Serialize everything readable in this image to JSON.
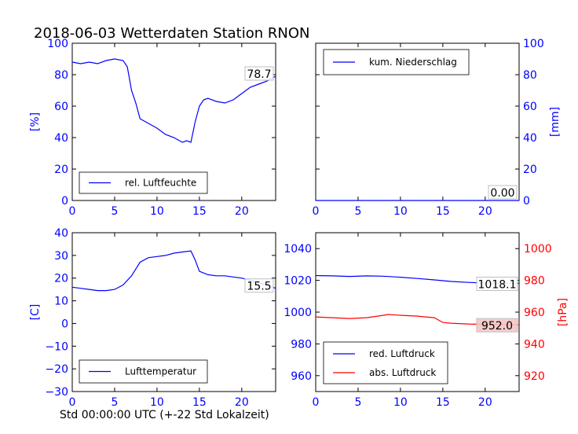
{
  "figure": {
    "title": "2018-06-03 Wetterdaten Station RNON",
    "xlabel": "Std 00:00:00 UTC (+-22 Std Lokalzeit)"
  },
  "chart_data": [
    {
      "id": "humidity",
      "type": "line",
      "ylabel": "[%]",
      "ylabel_color": "#0000ff",
      "ylabel_side": "left",
      "xlim": [
        0,
        24
      ],
      "ylim": [
        0,
        100
      ],
      "xticks": [
        "0",
        "5",
        "10",
        "15",
        "20"
      ],
      "yticks": [
        "0",
        "20",
        "40",
        "60",
        "80",
        "100"
      ],
      "tick_color": "#0000ff",
      "legend_position": "lower-center",
      "last_value": "78.7",
      "series": [
        {
          "name": "rel. Luftfeuchte",
          "color": "#0000ff",
          "x": [
            0,
            1,
            2,
            3,
            4,
            5,
            6,
            6.5,
            7,
            7.5,
            8,
            9,
            10,
            11,
            12,
            13,
            13.5,
            14,
            14.5,
            15,
            15.5,
            16,
            17,
            18,
            19,
            20,
            21,
            22,
            23,
            24
          ],
          "y": [
            88,
            87,
            88,
            87,
            89,
            90,
            89,
            85,
            70,
            62,
            52,
            49,
            46,
            42,
            40,
            37,
            38,
            37,
            50,
            60,
            64,
            65,
            63,
            62,
            64,
            68,
            72,
            74,
            76,
            79
          ]
        }
      ]
    },
    {
      "id": "precipitation",
      "type": "line",
      "ylabel": "[mm]",
      "ylabel_color": "#0000ff",
      "ylabel_side": "right",
      "xlim": [
        0,
        24
      ],
      "ylim": [
        0,
        100
      ],
      "xticks": [
        "0",
        "5",
        "10",
        "15",
        "20"
      ],
      "yticks": [
        "0",
        "20",
        "40",
        "60",
        "80",
        "100"
      ],
      "tick_color": "#0000ff",
      "legend_position": "upper-left",
      "last_value": "0.00",
      "series": [
        {
          "name": "kum. Niederschlag",
          "color": "#0000ff",
          "x": [
            0,
            24
          ],
          "y": [
            0,
            0
          ]
        }
      ]
    },
    {
      "id": "temperature",
      "type": "line",
      "ylabel": "[C]",
      "ylabel_color": "#0000ff",
      "ylabel_side": "left",
      "xlim": [
        0,
        24
      ],
      "ylim": [
        -30,
        40
      ],
      "xticks": [
        "0",
        "5",
        "10",
        "15",
        "20"
      ],
      "yticks": [
        "−30",
        "−20",
        "−10",
        "0",
        "10",
        "20",
        "30",
        "40"
      ],
      "tick_color": "#0000ff",
      "legend_position": "lower-center",
      "last_value": "15.5",
      "series": [
        {
          "name": "Lufttemperatur",
          "color": "#0000ff",
          "x": [
            0,
            1,
            2,
            3,
            4,
            5,
            6,
            7,
            7.5,
            8,
            9,
            10,
            11,
            12,
            13,
            14,
            14.5,
            15,
            16,
            17,
            18,
            19,
            20,
            21,
            22,
            23,
            24
          ],
          "y": [
            16,
            15.5,
            15,
            14.5,
            14.5,
            15,
            17,
            21,
            24,
            27,
            29,
            29.5,
            30,
            31,
            31.5,
            32,
            28,
            23,
            21.5,
            21,
            21,
            20.5,
            20,
            19,
            18,
            17,
            15.5
          ]
        }
      ]
    },
    {
      "id": "pressure",
      "type": "line",
      "ylabel": "",
      "ylabel_right": "[hPa]",
      "ylabel_right_color": "#ff0000",
      "xlim": [
        0,
        24
      ],
      "ylim": [
        950,
        1050
      ],
      "ylim_right": [
        910,
        1010
      ],
      "xticks": [
        "0",
        "5",
        "10",
        "15",
        "20"
      ],
      "yticks": [
        "960",
        "980",
        "1000",
        "1020",
        "1040"
      ],
      "yticks_right": [
        "920",
        "940",
        "960",
        "980",
        "1000"
      ],
      "tick_color": "#0000ff",
      "tick_color_right": "#ff0000",
      "legend_position": "lower-left",
      "last_values": [
        "1018.1",
        "952.0"
      ],
      "series": [
        {
          "name": "red. Luftdruck",
          "color": "#0000ff",
          "axis": "left",
          "x": [
            0,
            2,
            4,
            6,
            8,
            10,
            12,
            14,
            16,
            18,
            20,
            22,
            24
          ],
          "y": [
            1023,
            1022.8,
            1022.5,
            1022.8,
            1022.6,
            1022,
            1021.2,
            1020.3,
            1019.3,
            1018.7,
            1018.3,
            1018.1,
            1018.1
          ]
        },
        {
          "name": "abs. Luftdruck",
          "color": "#ff0000",
          "axis": "right",
          "x": [
            0,
            2,
            4,
            6,
            8,
            8.5,
            10,
            12,
            14,
            14.5,
            15,
            16,
            18,
            20,
            22,
            24
          ],
          "y": [
            957,
            956.5,
            956,
            956.5,
            958,
            958.5,
            958,
            957.5,
            956.5,
            955,
            953.5,
            953,
            952.5,
            952.3,
            952.2,
            952
          ]
        }
      ]
    }
  ]
}
